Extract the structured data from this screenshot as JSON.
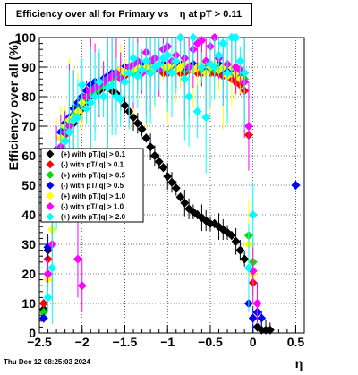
{
  "chart_data": {
    "type": "scatter",
    "title": "Efficiency over all for Primary vs    η at pT > 0.11",
    "xlabel": "η",
    "ylabel": "Efficiency over all (%)",
    "xlim": [
      -2.5,
      0.6
    ],
    "ylim": [
      0,
      100
    ],
    "x_ticks": [
      -2.5,
      -2,
      -1.5,
      -1,
      -0.5,
      0,
      0.5
    ],
    "x_tick_labels": [
      "−2.5",
      "−2",
      "−1.5",
      "−1",
      "−0.5",
      "0",
      "0.5"
    ],
    "y_ticks": [
      0,
      10,
      20,
      30,
      40,
      50,
      60,
      70,
      80,
      90,
      100
    ],
    "grid": true,
    "legend_position": "middle-left",
    "series": [
      {
        "name": "(+) with pT/|q| > 0.1",
        "color": "#000000",
        "x": [
          -2.45,
          -2.4,
          -2.35,
          -2.3,
          -2.25,
          -2.2,
          -2.15,
          -2.1,
          -2.05,
          -2.0,
          -1.95,
          -1.9,
          -1.85,
          -1.8,
          -1.75,
          -1.7,
          -1.65,
          -1.6,
          -1.55,
          -1.5,
          -1.45,
          -1.4,
          -1.35,
          -1.3,
          -1.25,
          -1.2,
          -1.15,
          -1.1,
          -1.05,
          -1.0,
          -0.95,
          -0.9,
          -0.85,
          -0.8,
          -0.75,
          -0.7,
          -0.65,
          -0.6,
          -0.55,
          -0.5,
          -0.45,
          -0.4,
          -0.35,
          -0.3,
          -0.25,
          -0.2,
          -0.15,
          -0.1,
          0.05,
          0.1,
          0.15,
          0.2
        ],
        "y": [
          8,
          28,
          45,
          58,
          62,
          65,
          68,
          71,
          74,
          76,
          78,
          80,
          81,
          82,
          83,
          83,
          82,
          81,
          79,
          77,
          75,
          73,
          71,
          69,
          66,
          63,
          60,
          58,
          56,
          53,
          51,
          49,
          46,
          44,
          42,
          41,
          40,
          39,
          38,
          37,
          37,
          36,
          35,
          34,
          33,
          31,
          28,
          25,
          2,
          1,
          1,
          1
        ]
      },
      {
        "name": "(-) with pT/|q| > 0.1",
        "color": "#ff0000",
        "x": [
          -2.45,
          -2.4,
          -2.35,
          -2.3,
          -2.25,
          -2.2,
          -2.15,
          -2.1,
          -2.05,
          -2.0,
          -1.95,
          -1.9,
          -1.85,
          -1.8,
          -1.75,
          -1.7,
          -1.65,
          -1.6,
          -1.55,
          -1.5,
          -1.45,
          -1.4,
          -1.35,
          -1.3,
          -1.25,
          -1.2,
          -1.15,
          -1.1,
          -1.05,
          -1.0,
          -0.95,
          -0.9,
          -0.85,
          -0.8,
          -0.75,
          -0.7,
          -0.65,
          -0.6,
          -0.55,
          -0.5,
          -0.45,
          -0.4,
          -0.35,
          -0.3,
          -0.25,
          -0.2,
          -0.15,
          -0.1,
          -0.05,
          0.0
        ],
        "y": [
          10,
          25,
          48,
          60,
          63,
          67,
          71,
          74,
          76,
          78,
          80,
          82,
          83,
          84,
          85,
          86,
          86,
          87,
          87,
          87,
          88,
          88,
          88,
          88,
          89,
          88,
          89,
          89,
          88,
          88,
          89,
          89,
          88,
          88,
          89,
          89,
          88,
          88,
          89,
          88,
          88,
          88,
          87,
          87,
          86,
          85,
          84,
          82,
          67,
          17
        ]
      },
      {
        "name": "(+) with pT/|q| > 0.5",
        "color": "#00dd00",
        "x": [
          -2.45,
          -2.4,
          -2.35,
          -2.3,
          -2.25,
          -2.2,
          -2.15,
          -2.1,
          -2.05,
          -2.0,
          -1.95,
          -1.9,
          -1.85,
          -1.8,
          -1.75,
          -1.7,
          -1.65,
          -1.6,
          -1.55,
          -1.5,
          -1.45,
          -1.4,
          -1.35,
          -1.3,
          -1.25,
          -1.2,
          -1.15,
          -1.1,
          -1.05,
          -1.0,
          -0.95,
          -0.9,
          -0.85,
          -0.8,
          -0.75,
          -0.7,
          -0.65,
          -0.6,
          -0.55,
          -0.5,
          -0.45,
          -0.4,
          -0.35,
          -0.3,
          -0.25,
          -0.2,
          -0.15,
          -0.1,
          -0.05,
          0.0
        ],
        "y": [
          7,
          20,
          40,
          57,
          66,
          69,
          72,
          74,
          77,
          79,
          80,
          81,
          82,
          83,
          84,
          86,
          86,
          87,
          88,
          88,
          89,
          88,
          89,
          89,
          90,
          89,
          89,
          90,
          90,
          89,
          89,
          90,
          90,
          89,
          90,
          90,
          90,
          89,
          90,
          90,
          89,
          90,
          89,
          89,
          88,
          88,
          87,
          86,
          33,
          24
        ]
      },
      {
        "name": "(-) with pT/|q| > 0.5",
        "color": "#0000ff",
        "x": [
          -2.45,
          -2.4,
          -2.35,
          -2.3,
          -2.25,
          -2.2,
          -2.15,
          -2.1,
          -2.05,
          -2.0,
          -1.95,
          -1.9,
          -1.85,
          -1.8,
          -1.75,
          -1.7,
          -1.65,
          -1.6,
          -1.55,
          -1.5,
          -1.45,
          -1.4,
          -1.35,
          -1.3,
          -1.25,
          -1.2,
          -1.15,
          -1.1,
          -1.05,
          -1.0,
          -0.95,
          -0.9,
          -0.85,
          -0.8,
          -0.75,
          -0.7,
          -0.65,
          -0.6,
          -0.55,
          -0.5,
          -0.45,
          -0.4,
          -0.35,
          -0.3,
          -0.25,
          -0.2,
          -0.15,
          -0.1,
          -0.05,
          0.0,
          0.05,
          0.1,
          0.5
        ],
        "y": [
          5,
          29,
          52,
          62,
          68,
          71,
          73,
          76,
          78,
          80,
          82,
          84,
          85,
          85,
          86,
          87,
          88,
          88,
          89,
          90,
          89,
          90,
          90,
          91,
          90,
          91,
          90,
          91,
          91,
          90,
          91,
          90,
          91,
          90,
          90,
          91,
          90,
          91,
          90,
          91,
          90,
          91,
          89,
          90,
          89,
          89,
          88,
          88,
          10,
          5,
          7,
          5,
          50
        ]
      },
      {
        "name": "(+) with pT/|q| > 1.0",
        "color": "#ffff00",
        "x": [
          -2.4,
          -2.35,
          -2.3,
          -2.25,
          -2.2,
          -2.15,
          -2.1,
          -2.05,
          -2.0,
          -1.95,
          -1.9,
          -1.85,
          -1.8,
          -1.75,
          -1.7,
          -1.65,
          -1.6,
          -1.55,
          -1.5,
          -1.45,
          -1.4,
          -1.35,
          -1.3,
          -1.25,
          -1.2,
          -1.15,
          -1.1,
          -1.05,
          -1.0,
          -0.95,
          -0.9,
          -0.85,
          -0.8,
          -0.75,
          -0.7,
          -0.65,
          -0.6,
          -0.55,
          -0.5,
          -0.45,
          -0.4,
          -0.35,
          -0.3,
          -0.25,
          -0.2,
          -0.15,
          -0.1,
          -0.05,
          0.0
        ],
        "y": [
          18,
          35,
          58,
          66,
          70,
          72,
          73,
          75,
          78,
          80,
          82,
          83,
          84,
          85,
          86,
          87,
          88,
          89,
          88,
          89,
          89,
          90,
          89,
          90,
          90,
          89,
          91,
          90,
          90,
          91,
          89,
          90,
          91,
          90,
          89,
          90,
          91,
          88,
          90,
          91,
          89,
          90,
          87,
          90,
          88,
          86,
          85,
          30,
          20
        ]
      },
      {
        "name": "(-) with pT/|q| > 1.0",
        "color": "#ff00ff",
        "x": [
          -2.4,
          -2.35,
          -2.3,
          -2.25,
          -2.2,
          -2.15,
          -2.1,
          -2.05,
          -2.0,
          -1.95,
          -1.9,
          -1.85,
          -1.8,
          -1.75,
          -1.7,
          -1.65,
          -1.6,
          -1.55,
          -1.5,
          -1.45,
          -1.4,
          -1.35,
          -1.3,
          -1.25,
          -1.2,
          -1.15,
          -1.1,
          -1.05,
          -1.0,
          -0.95,
          -0.9,
          -0.85,
          -0.8,
          -0.75,
          -0.7,
          -0.65,
          -0.6,
          -0.55,
          -0.5,
          -0.45,
          -0.4,
          -0.35,
          -0.3,
          -0.25,
          -0.2,
          -0.15,
          -0.1,
          -0.05,
          0.0,
          0.05
        ],
        "y": [
          20,
          30,
          55,
          63,
          68,
          70,
          72,
          25,
          16,
          80,
          82,
          83,
          84,
          85,
          86,
          87,
          88,
          86,
          85,
          90,
          91,
          92,
          88,
          95,
          92,
          93,
          89,
          96,
          97,
          92,
          94,
          100,
          93,
          90,
          96,
          98,
          99,
          92,
          97,
          100,
          93,
          98,
          91,
          100,
          90,
          89,
          85,
          70,
          21,
          10
        ]
      },
      {
        "name": "(+) with pT/|q| > 2.0",
        "color": "#00ffff",
        "x": [
          -2.4,
          -2.35,
          -2.3,
          -2.25,
          -2.2,
          -2.15,
          -2.1,
          -2.05,
          -2.0,
          -1.95,
          -1.9,
          -1.85,
          -1.8,
          -1.75,
          -1.7,
          -1.65,
          -1.6,
          -1.55,
          -1.5,
          -1.45,
          -1.4,
          -1.35,
          -1.3,
          -1.25,
          -1.2,
          -1.15,
          -1.1,
          -1.05,
          -1.0,
          -0.95,
          -0.9,
          -0.85,
          -0.8,
          -0.75,
          -0.7,
          -0.65,
          -0.6,
          -0.55,
          -0.5,
          -0.45,
          -0.4,
          -0.35,
          -0.3,
          -0.25,
          -0.2,
          -0.15,
          -0.1,
          -0.05,
          0.0
        ],
        "y": [
          12,
          22,
          50,
          60,
          65,
          68,
          72,
          73,
          84,
          76,
          78,
          80,
          85,
          80,
          83,
          84,
          80,
          79,
          85,
          88,
          93,
          87,
          89,
          92,
          88,
          90,
          91,
          93,
          94,
          88,
          92,
          100,
          86,
          80,
          100,
          75,
          90,
          73,
          91,
          90,
          94,
          98,
          88,
          100,
          100,
          92,
          88,
          22,
          40
        ]
      }
    ]
  },
  "footer": {
    "date": "Thu Dec 12 08:25:03 2024"
  }
}
